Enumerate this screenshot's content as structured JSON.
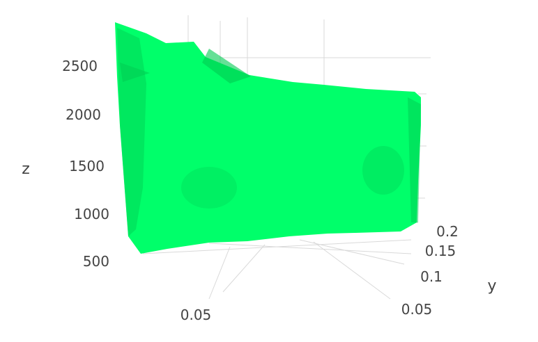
{
  "chart_data": {
    "type": "surface-3d",
    "axes": {
      "x": {
        "title": "",
        "tick_labels": [
          "0.05"
        ]
      },
      "y": {
        "title": "y",
        "tick_labels": [
          "0.05",
          "0.1",
          "0.15",
          "0.2"
        ]
      },
      "z": {
        "title": "z",
        "tick_labels": [
          "500",
          "1000",
          "1500",
          "2000",
          "2500"
        ],
        "range": [
          450,
          2950
        ]
      }
    },
    "surface": {
      "color": "#00ff6a",
      "shade_color": "#00cc52",
      "z_top_left": 2900,
      "z_top_right": 2200,
      "z_bottom_left": 480,
      "z_bottom_right": 880
    },
    "grid": true,
    "background": "#ffffff",
    "grid_color": "#d9d9d9",
    "text_color": "#444444"
  }
}
